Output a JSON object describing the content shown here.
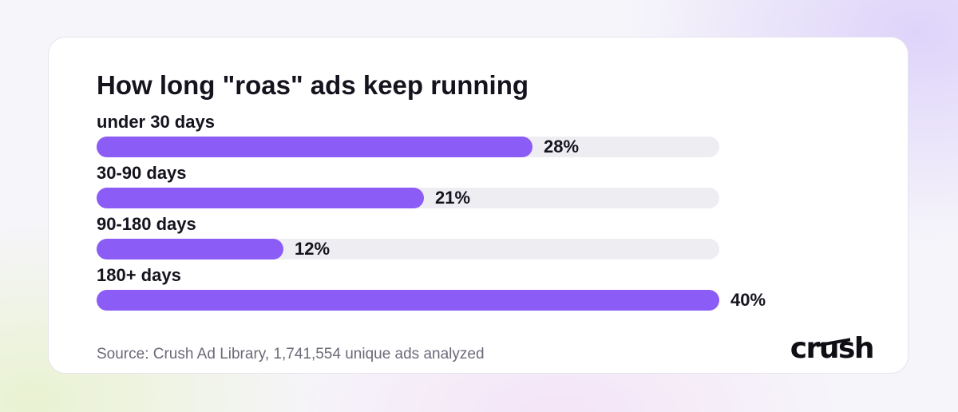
{
  "title": "How long \"roas\" ads keep running",
  "source": "Source: Crush Ad Library, 1,741,554 unique ads analyzed",
  "logo": "crush",
  "colors": {
    "bar": "#8b5cf6",
    "track": "#eeeef2",
    "text": "#15131d"
  },
  "chart_data": {
    "type": "bar",
    "orientation": "horizontal",
    "title": "How long \"roas\" ads keep running",
    "categories": [
      "under 30 days",
      "30-90 days",
      "90-180 days",
      "180+ days"
    ],
    "values": [
      28,
      21,
      12,
      40
    ],
    "value_labels": [
      "28%",
      "21%",
      "12%",
      "40%"
    ],
    "unit": "%",
    "xlim": [
      0,
      40
    ],
    "grid": false,
    "legend": "none"
  }
}
